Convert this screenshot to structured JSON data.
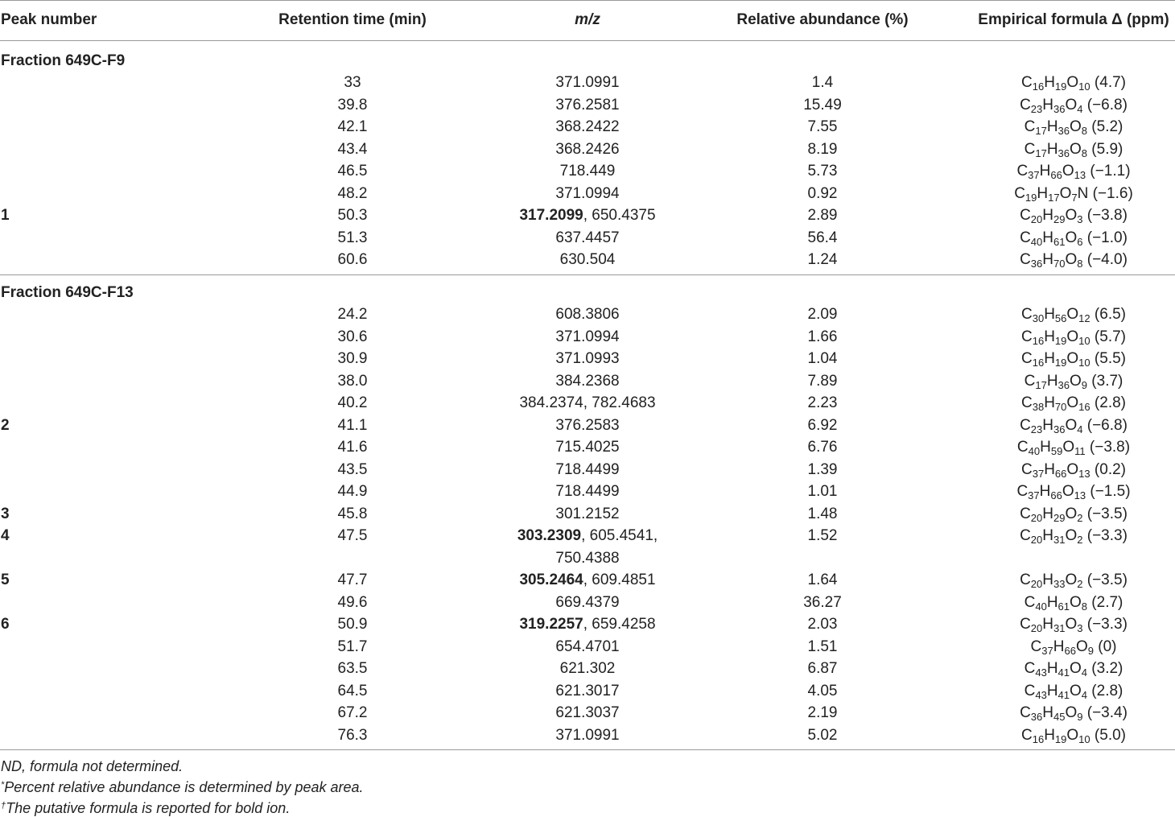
{
  "headers": {
    "peak": "Peak number",
    "rt": "Retention time (min)",
    "mz": "m/z",
    "abundance": "Relative abundance (%)",
    "formula": "Empirical formula Δ (ppm)"
  },
  "sections": [
    {
      "title": "Fraction 649C-F9",
      "rows": [
        {
          "peak": "",
          "rt": "33",
          "mz_bold": "",
          "mz": "371.0991",
          "ab": "1.4",
          "f": [
            [
              "C",
              "16"
            ],
            [
              "H",
              "19"
            ],
            [
              "O",
              "10"
            ]
          ],
          "ppm": " (4.7)"
        },
        {
          "peak": "",
          "rt": "39.8",
          "mz_bold": "",
          "mz": "376.2581",
          "ab": "15.49",
          "f": [
            [
              "C",
              "23"
            ],
            [
              "H",
              "36"
            ],
            [
              "O",
              "4"
            ]
          ],
          "ppm": " (−6.8)"
        },
        {
          "peak": "",
          "rt": "42.1",
          "mz_bold": "",
          "mz": "368.2422",
          "ab": "7.55",
          "f": [
            [
              "C",
              "17"
            ],
            [
              "H",
              "36"
            ],
            [
              "O",
              "8"
            ]
          ],
          "ppm": " (5.2)"
        },
        {
          "peak": "",
          "rt": "43.4",
          "mz_bold": "",
          "mz": "368.2426",
          "ab": "8.19",
          "f": [
            [
              "C",
              "17"
            ],
            [
              "H",
              "36"
            ],
            [
              "O",
              "8"
            ]
          ],
          "ppm": " (5.9)"
        },
        {
          "peak": "",
          "rt": "46.5",
          "mz_bold": "",
          "mz": "718.449",
          "ab": "5.73",
          "f": [
            [
              "C",
              "37"
            ],
            [
              "H",
              "66"
            ],
            [
              "O",
              "13"
            ]
          ],
          "ppm": " (−1.1)"
        },
        {
          "peak": "",
          "rt": "48.2",
          "mz_bold": "",
          "mz": "371.0994",
          "ab": "0.92",
          "f": [
            [
              "C",
              "19"
            ],
            [
              "H",
              "17"
            ],
            [
              "O",
              "7"
            ],
            [
              "N",
              ""
            ]
          ],
          "ppm": " (−1.6)"
        },
        {
          "peak": "1",
          "rt": "50.3",
          "mz_bold": "317.2099",
          "mz": ", 650.4375",
          "ab": "2.89",
          "f": [
            [
              "C",
              "20"
            ],
            [
              "H",
              "29"
            ],
            [
              "O",
              "3"
            ]
          ],
          "ppm": " (−3.8)"
        },
        {
          "peak": "",
          "rt": "51.3",
          "mz_bold": "",
          "mz": "637.4457",
          "ab": "56.4",
          "f": [
            [
              "C",
              "40"
            ],
            [
              "H",
              "61"
            ],
            [
              "O",
              "6"
            ]
          ],
          "ppm": " (−1.0)"
        },
        {
          "peak": "",
          "rt": "60.6",
          "mz_bold": "",
          "mz": "630.504",
          "ab": "1.24",
          "f": [
            [
              "C",
              "36"
            ],
            [
              "H",
              "70"
            ],
            [
              "O",
              "8"
            ]
          ],
          "ppm": " (−4.0)"
        }
      ]
    },
    {
      "title": "Fraction 649C-F13",
      "rows": [
        {
          "peak": "",
          "rt": "24.2",
          "mz_bold": "",
          "mz": "608.3806",
          "ab": "2.09",
          "f": [
            [
              "C",
              "30"
            ],
            [
              "H",
              "56"
            ],
            [
              "O",
              "12"
            ]
          ],
          "ppm": " (6.5)"
        },
        {
          "peak": "",
          "rt": "30.6",
          "mz_bold": "",
          "mz": "371.0994",
          "ab": "1.66",
          "f": [
            [
              "C",
              "16"
            ],
            [
              "H",
              "19"
            ],
            [
              "O",
              "10"
            ]
          ],
          "ppm": " (5.7)"
        },
        {
          "peak": "",
          "rt": "30.9",
          "mz_bold": "",
          "mz": "371.0993",
          "ab": "1.04",
          "f": [
            [
              "C",
              "16"
            ],
            [
              "H",
              "19"
            ],
            [
              "O",
              "10"
            ]
          ],
          "ppm": " (5.5)"
        },
        {
          "peak": "",
          "rt": "38.0",
          "mz_bold": "",
          "mz": "384.2368",
          "ab": "7.89",
          "f": [
            [
              "C",
              "17"
            ],
            [
              "H",
              "36"
            ],
            [
              "O",
              "9"
            ]
          ],
          "ppm": " (3.7)"
        },
        {
          "peak": "",
          "rt": "40.2",
          "mz_bold": "",
          "mz": "384.2374, 782.4683",
          "ab": "2.23",
          "f": [
            [
              "C",
              "38"
            ],
            [
              "H",
              "70"
            ],
            [
              "O",
              "16"
            ]
          ],
          "ppm": " (2.8)"
        },
        {
          "peak": "2",
          "rt": "41.1",
          "mz_bold": "",
          "mz": "376.2583",
          "ab": "6.92",
          "f": [
            [
              "C",
              "23"
            ],
            [
              "H",
              "36"
            ],
            [
              "O",
              "4"
            ]
          ],
          "ppm": " (−6.8)"
        },
        {
          "peak": "",
          "rt": "41.6",
          "mz_bold": "",
          "mz": "715.4025",
          "ab": "6.76",
          "f": [
            [
              "C",
              "40"
            ],
            [
              "H",
              "59"
            ],
            [
              "O",
              "11"
            ]
          ],
          "ppm": " (−3.8)"
        },
        {
          "peak": "",
          "rt": "43.5",
          "mz_bold": "",
          "mz": "718.4499",
          "ab": "1.39",
          "f": [
            [
              "C",
              "37"
            ],
            [
              "H",
              "66"
            ],
            [
              "O",
              "13"
            ]
          ],
          "ppm": " (0.2)"
        },
        {
          "peak": "",
          "rt": "44.9",
          "mz_bold": "",
          "mz": "718.4499",
          "ab": "1.01",
          "f": [
            [
              "C",
              "37"
            ],
            [
              "H",
              "66"
            ],
            [
              "O",
              "13"
            ]
          ],
          "ppm": " (−1.5)"
        },
        {
          "peak": "3",
          "rt": "45.8",
          "mz_bold": "",
          "mz": "301.2152",
          "ab": "1.48",
          "f": [
            [
              "C",
              "20"
            ],
            [
              "H",
              "29"
            ],
            [
              "O",
              "2"
            ]
          ],
          "ppm": " (−3.5)"
        },
        {
          "peak": "4",
          "rt": "47.5",
          "mz_bold": "303.2309",
          "mz": ", 605.4541,",
          "mz_cont": "750.4388",
          "ab": "1.52",
          "f": [
            [
              "C",
              "20"
            ],
            [
              "H",
              "31"
            ],
            [
              "O",
              "2"
            ]
          ],
          "ppm": " (−3.3)"
        },
        {
          "peak": "5",
          "rt": "47.7",
          "mz_bold": "305.2464",
          "mz": ", 609.4851",
          "ab": "1.64",
          "f": [
            [
              "C",
              "20"
            ],
            [
              "H",
              "33"
            ],
            [
              "O",
              "2"
            ]
          ],
          "ppm": " (−3.5)"
        },
        {
          "peak": "",
          "rt": "49.6",
          "mz_bold": "",
          "mz": "669.4379",
          "ab": "36.27",
          "f": [
            [
              "C",
              "40"
            ],
            [
              "H",
              "61"
            ],
            [
              "O",
              "8"
            ]
          ],
          "ppm": " (2.7)"
        },
        {
          "peak": "6",
          "rt": "50.9",
          "mz_bold": "319.2257",
          "mz": ", 659.4258",
          "ab": "2.03",
          "f": [
            [
              "C",
              "20"
            ],
            [
              "H",
              "31"
            ],
            [
              "O",
              "3"
            ]
          ],
          "ppm": " (−3.3)"
        },
        {
          "peak": "",
          "rt": "51.7",
          "mz_bold": "",
          "mz": "654.4701",
          "ab": "1.51",
          "f": [
            [
              "C",
              "37"
            ],
            [
              "H",
              "66"
            ],
            [
              "O",
              "9"
            ]
          ],
          "ppm": " (0)"
        },
        {
          "peak": "",
          "rt": "63.5",
          "mz_bold": "",
          "mz": "621.302",
          "ab": "6.87",
          "f": [
            [
              "C",
              "43"
            ],
            [
              "H",
              "41"
            ],
            [
              "O",
              "4"
            ]
          ],
          "ppm": " (3.2)"
        },
        {
          "peak": "",
          "rt": "64.5",
          "mz_bold": "",
          "mz": "621.3017",
          "ab": "4.05",
          "f": [
            [
              "C",
              "43"
            ],
            [
              "H",
              "41"
            ],
            [
              "O",
              "4"
            ]
          ],
          "ppm": " (2.8)"
        },
        {
          "peak": "",
          "rt": "67.2",
          "mz_bold": "",
          "mz": "621.3037",
          "ab": "2.19",
          "f": [
            [
              "C",
              "36"
            ],
            [
              "H",
              "45"
            ],
            [
              "O",
              "9"
            ]
          ],
          "ppm": " (−3.4)"
        },
        {
          "peak": "",
          "rt": "76.3",
          "mz_bold": "",
          "mz": "371.0991",
          "ab": "5.02",
          "f": [
            [
              "C",
              "16"
            ],
            [
              "H",
              "19"
            ],
            [
              "O",
              "10"
            ]
          ],
          "ppm": " (5.0)"
        }
      ]
    }
  ],
  "footnotes": {
    "nd": "ND, formula not determined.",
    "star_mark": "*",
    "star_text": "Percent relative abundance is determined by peak area.",
    "dagger_mark": "†",
    "dagger_text": "The putative formula is reported for bold ion."
  }
}
